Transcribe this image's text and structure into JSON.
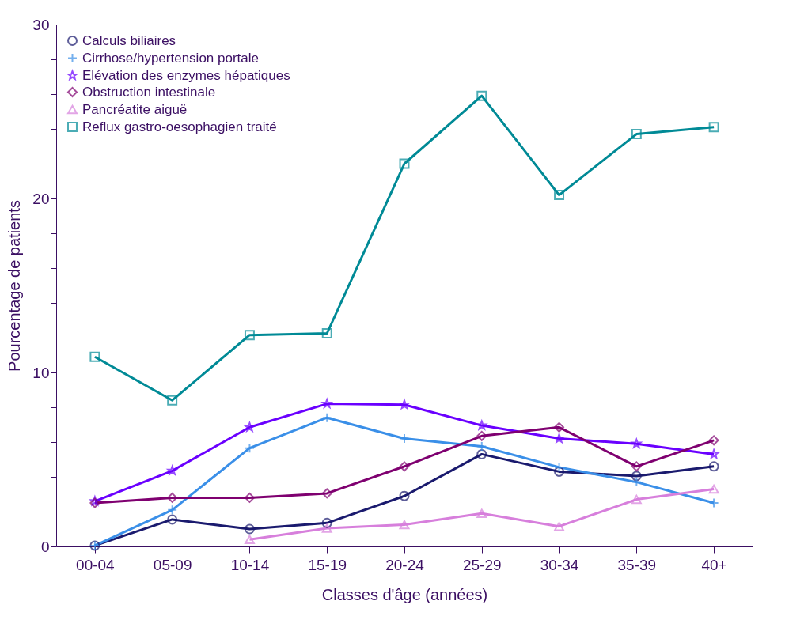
{
  "chart_data": {
    "type": "line",
    "xlabel": "Classes d'âge (années)",
    "ylabel": "Pourcentage de patients",
    "categories": [
      "00-04",
      "05-09",
      "10-14",
      "15-19",
      "20-24",
      "25-29",
      "30-34",
      "35-39",
      "40+"
    ],
    "ylim": [
      0,
      30
    ],
    "yticks": [
      0,
      {
        "value": 2,
        "label": null
      },
      {
        "value": 4,
        "label": null
      },
      {
        "value": 6,
        "label": null
      },
      {
        "value": 8,
        "label": null
      },
      10,
      {
        "value": 12,
        "label": null
      },
      {
        "value": 14,
        "label": null
      },
      {
        "value": 16,
        "label": null
      },
      {
        "value": 18,
        "label": null
      },
      20,
      {
        "value": 22,
        "label": null
      },
      {
        "value": 24,
        "label": null
      },
      {
        "value": 26,
        "label": null
      },
      {
        "value": 28,
        "label": null
      },
      30
    ],
    "grid": false,
    "legend": "top left",
    "series": [
      {
        "name": "Calculs biliaires",
        "color": "#1a1a6e",
        "marker": "circle",
        "values": [
          0.05,
          1.55,
          1.0,
          1.35,
          2.9,
          5.3,
          4.3,
          4.05,
          4.6
        ]
      },
      {
        "name": "Cirrhose/hypertension portale",
        "color": "#3a8fe8",
        "marker": "cross",
        "values": [
          0.05,
          2.1,
          5.65,
          7.4,
          6.2,
          5.75,
          4.55,
          3.7,
          2.5
        ]
      },
      {
        "name": "Elévation des enzymes hépatiques",
        "color": "#6a00ff",
        "marker": "star",
        "values": [
          2.6,
          4.35,
          6.85,
          8.2,
          8.15,
          6.95,
          6.2,
          5.9,
          5.3
        ]
      },
      {
        "name": "Obstruction intestinale",
        "color": "#7f0070",
        "marker": "diamond",
        "values": [
          2.5,
          2.8,
          2.8,
          3.05,
          4.6,
          6.35,
          6.85,
          4.6,
          6.1
        ]
      },
      {
        "name": "Pancréatite aiguë",
        "color": "#d77fdc",
        "marker": "triangle",
        "values": [
          null,
          null,
          0.4,
          1.05,
          1.25,
          1.9,
          1.15,
          2.7,
          3.3
        ]
      },
      {
        "name": "Reflux gastro-oesophagien traité",
        "color": "#008a96",
        "marker": "square",
        "values": [
          10.9,
          8.4,
          12.15,
          12.25,
          22.0,
          25.9,
          20.2,
          23.7,
          24.1
        ]
      }
    ]
  }
}
